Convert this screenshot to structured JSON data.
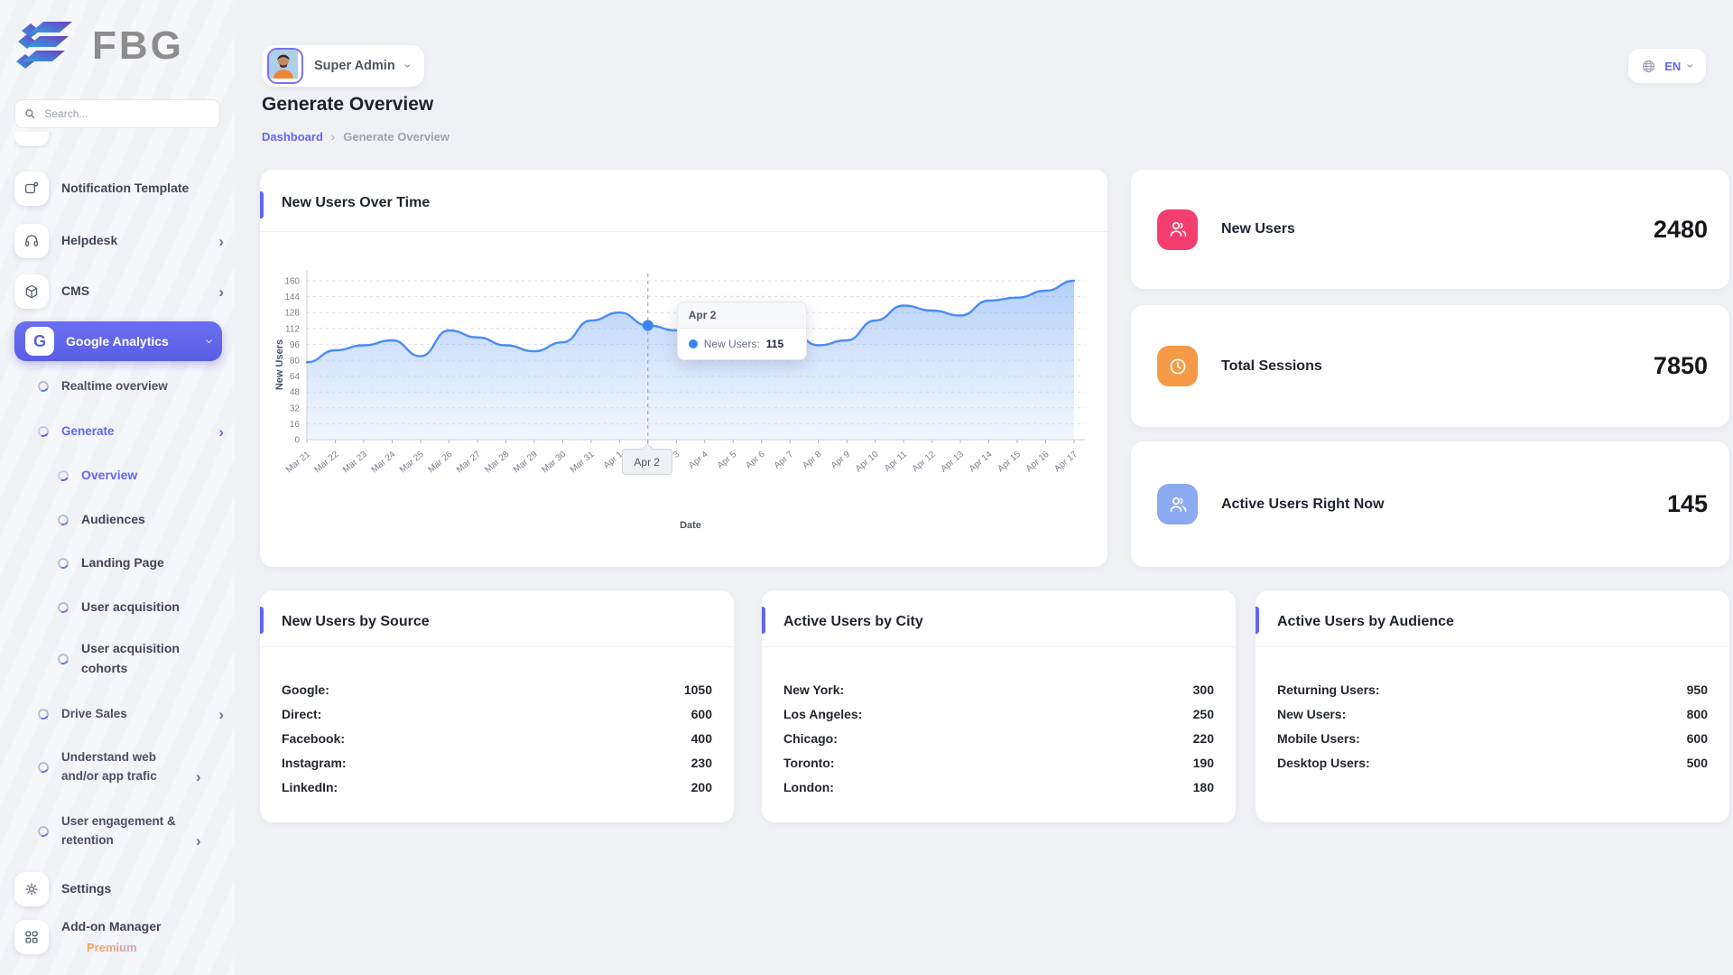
{
  "brand": {
    "name": "FBG"
  },
  "header": {
    "user_name": "Super Admin",
    "language": "EN",
    "page_title": "Generate Overview",
    "breadcrumb": [
      "Dashboard",
      "Generate Overview"
    ]
  },
  "sidebar": {
    "search_placeholder": "Search...",
    "notification_template": "Notification Template",
    "helpdesk": "Helpdesk",
    "cms": "CMS",
    "google_analytics": "Google Analytics",
    "google_analytics_icon_letter": "G",
    "realtime_overview": "Realtime overview",
    "generate": "Generate",
    "overview": "Overview",
    "audiences": "Audiences",
    "landing_page": "Landing Page",
    "user_acquisition": "User acquisition",
    "user_acquisition_cohorts": "User acquisition cohorts",
    "drive_sales": "Drive Sales",
    "understand_web": "Understand web and/or app trafic",
    "user_engagement": "User engagement & retention",
    "settings": "Settings",
    "addon_manager": "Add-on Manager",
    "addon_badge": "Premium"
  },
  "stats": [
    {
      "label": "New Users",
      "value": "2480",
      "color": "#f43f6e",
      "icon": "users-icon"
    },
    {
      "label": "Total Sessions",
      "value": "7850",
      "color": "#f59a47",
      "icon": "clock-icon"
    },
    {
      "label": "Active Users Right Now",
      "value": "145",
      "color": "#8caaf0",
      "icon": "users-icon"
    }
  ],
  "chart_data": {
    "type": "area",
    "title": "New Users Over Time",
    "xlabel": "Date",
    "ylabel": "New Users",
    "ylim": [
      0,
      160
    ],
    "ytick_step": 16,
    "grid": true,
    "line_color": "#4a8cf7",
    "area_top": "rgba(116,166,245,0.55)",
    "area_bottom": "rgba(196,217,247,0.25)",
    "categories": [
      "Mar 21",
      "Mar 22",
      "Mar 23",
      "Mar 24",
      "Mar 25",
      "Mar 26",
      "Mar 27",
      "Mar 28",
      "Mar 29",
      "Mar 30",
      "Mar 31",
      "Apr 1",
      "Apr 2",
      "Apr 3",
      "Apr 4",
      "Apr 5",
      "Apr 6",
      "Apr 7",
      "Apr 8",
      "Apr 9",
      "Apr 10",
      "Apr 11",
      "Apr 12",
      "Apr 13",
      "Apr 14",
      "Apr 15",
      "Apr 16",
      "Apr 17"
    ],
    "series": [
      {
        "name": "New Users",
        "values": [
          78,
          90,
          95,
          100,
          84,
          110,
          103,
          95,
          89,
          98,
          120,
          128,
          115,
          110,
          104,
          100,
          108,
          110,
          95,
          100,
          120,
          135,
          130,
          125,
          140,
          143,
          150,
          160
        ]
      }
    ],
    "tooltip": {
      "index": 12,
      "category": "Apr 2",
      "series_label": "New Users:",
      "value": 115
    }
  },
  "tables": [
    {
      "title": "New Users by Source",
      "rows": [
        [
          "Google:",
          "1050"
        ],
        [
          "Direct:",
          "600"
        ],
        [
          "Facebook:",
          "400"
        ],
        [
          "Instagram:",
          "230"
        ],
        [
          "LinkedIn:",
          "200"
        ]
      ]
    },
    {
      "title": "Active Users by City",
      "rows": [
        [
          "New York:",
          "300"
        ],
        [
          "Los Angeles:",
          "250"
        ],
        [
          "Chicago:",
          "220"
        ],
        [
          "Toronto:",
          "190"
        ],
        [
          "London:",
          "180"
        ]
      ]
    },
    {
      "title": "Active Users by Audience",
      "rows": [
        [
          "Returning Users:",
          "950"
        ],
        [
          "New Users:",
          "800"
        ],
        [
          "Mobile Users:",
          "600"
        ],
        [
          "Desktop Users:",
          "500"
        ]
      ]
    }
  ]
}
